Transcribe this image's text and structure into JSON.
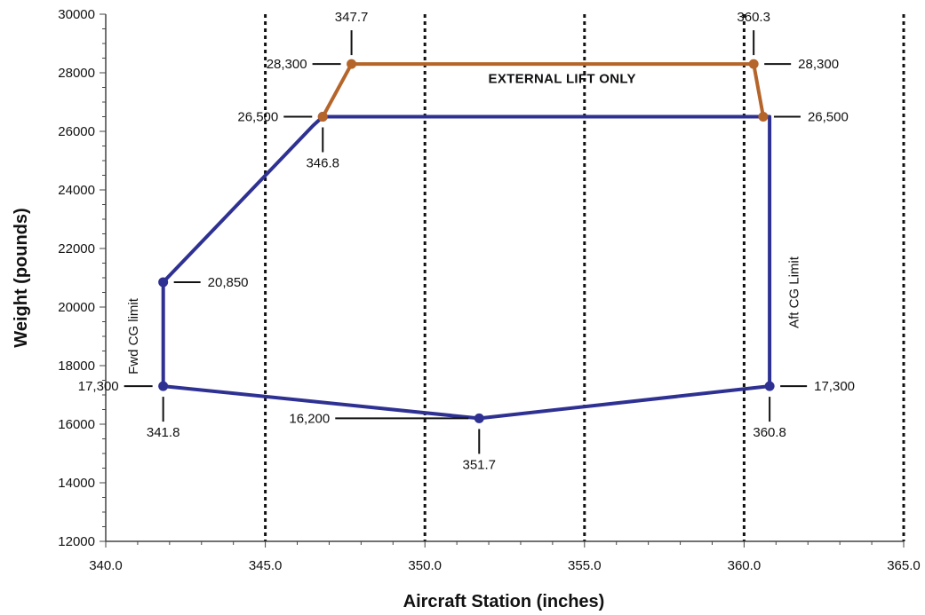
{
  "chart_data": {
    "type": "line",
    "xlabel": "Aircraft Station (inches)",
    "ylabel": "Weight (pounds)",
    "xlim": [
      340,
      365
    ],
    "ylim": [
      12000,
      30000
    ],
    "x_ticks": [
      "340.0",
      "345.0",
      "350.0",
      "355.0",
      "360.0",
      "365.0"
    ],
    "y_ticks": [
      "12000",
      "14000",
      "16000",
      "18000",
      "20000",
      "22000",
      "24000",
      "26000",
      "28000",
      "30000"
    ],
    "x_tick_values": [
      340,
      345,
      350,
      355,
      360,
      365
    ],
    "y_tick_values": [
      12000,
      14000,
      16000,
      18000,
      20000,
      22000,
      24000,
      26000,
      28000,
      30000
    ],
    "grid": "vertical dotted lines at x = 345, 350, 355, 360, 365",
    "series": [
      {
        "color": "#2e3192",
        "points": [
          {
            "x": 341.8,
            "y": 17300,
            "marker": true
          },
          {
            "x": 341.8,
            "y": 20850,
            "marker": true
          },
          {
            "x": 346.5,
            "y": 26200,
            "marker": false
          },
          {
            "x": 346.8,
            "y": 26500,
            "marker": true
          },
          {
            "x": 360.8,
            "y": 26500,
            "marker": false
          },
          {
            "x": 360.8,
            "y": 26200,
            "marker": false
          },
          {
            "x": 360.8,
            "y": 17300,
            "marker": true
          },
          {
            "x": 351.7,
            "y": 16200,
            "marker": true
          },
          {
            "x": 341.8,
            "y": 17300,
            "marker": false
          }
        ]
      },
      {
        "color": "#b5652a",
        "points": [
          {
            "x": 346.8,
            "y": 26500,
            "marker": true
          },
          {
            "x": 347.7,
            "y": 28300,
            "marker": true
          },
          {
            "x": 360.3,
            "y": 28300,
            "marker": true
          },
          {
            "x": 360.6,
            "y": 26500,
            "marker": true
          }
        ]
      }
    ],
    "annotations": [
      {
        "text": "347.7",
        "at": {
          "x": 347.7,
          "y": 28300
        },
        "leader": "up"
      },
      {
        "text": "360.3",
        "at": {
          "x": 360.3,
          "y": 28300
        },
        "leader": "up"
      },
      {
        "text": "28,300",
        "at": {
          "x": 347.7,
          "y": 28300
        },
        "leader": "left"
      },
      {
        "text": "28,300",
        "at": {
          "x": 360.3,
          "y": 28300
        },
        "leader": "right"
      },
      {
        "text": "26,500",
        "at": {
          "x": 346.8,
          "y": 26500
        },
        "leader": "left"
      },
      {
        "text": "26,500",
        "at": {
          "x": 360.6,
          "y": 26500
        },
        "leader": "right"
      },
      {
        "text": "346.8",
        "at": {
          "x": 346.8,
          "y": 26500
        },
        "leader": "down"
      },
      {
        "text": "20,850",
        "at": {
          "x": 341.8,
          "y": 20850
        },
        "leader": "right"
      },
      {
        "text": "17,300",
        "at": {
          "x": 341.8,
          "y": 17300
        },
        "leader": "left"
      },
      {
        "text": "341.8",
        "at": {
          "x": 341.8,
          "y": 17300
        },
        "leader": "down"
      },
      {
        "text": "16,200",
        "at": {
          "x": 351.7,
          "y": 16200
        },
        "leader": "left"
      },
      {
        "text": "351.7",
        "at": {
          "x": 351.7,
          "y": 16200
        },
        "leader": "down"
      },
      {
        "text": "17,300",
        "at": {
          "x": 360.8,
          "y": 17300
        },
        "leader": "right"
      },
      {
        "text": "360.8",
        "at": {
          "x": 360.8,
          "y": 17300
        },
        "leader": "down"
      }
    ],
    "region_labels": [
      {
        "text": "EXTERNAL LIFT ONLY",
        "x": 354.3,
        "y": 27650,
        "rotate": 0,
        "bold": true
      },
      {
        "text": "Fwd CG limit",
        "x": 341.0,
        "y": 19000,
        "rotate": -90,
        "bold": false
      },
      {
        "text": "Aft CG Limit",
        "x": 361.7,
        "y": 20500,
        "rotate": -90,
        "bold": false
      }
    ]
  }
}
